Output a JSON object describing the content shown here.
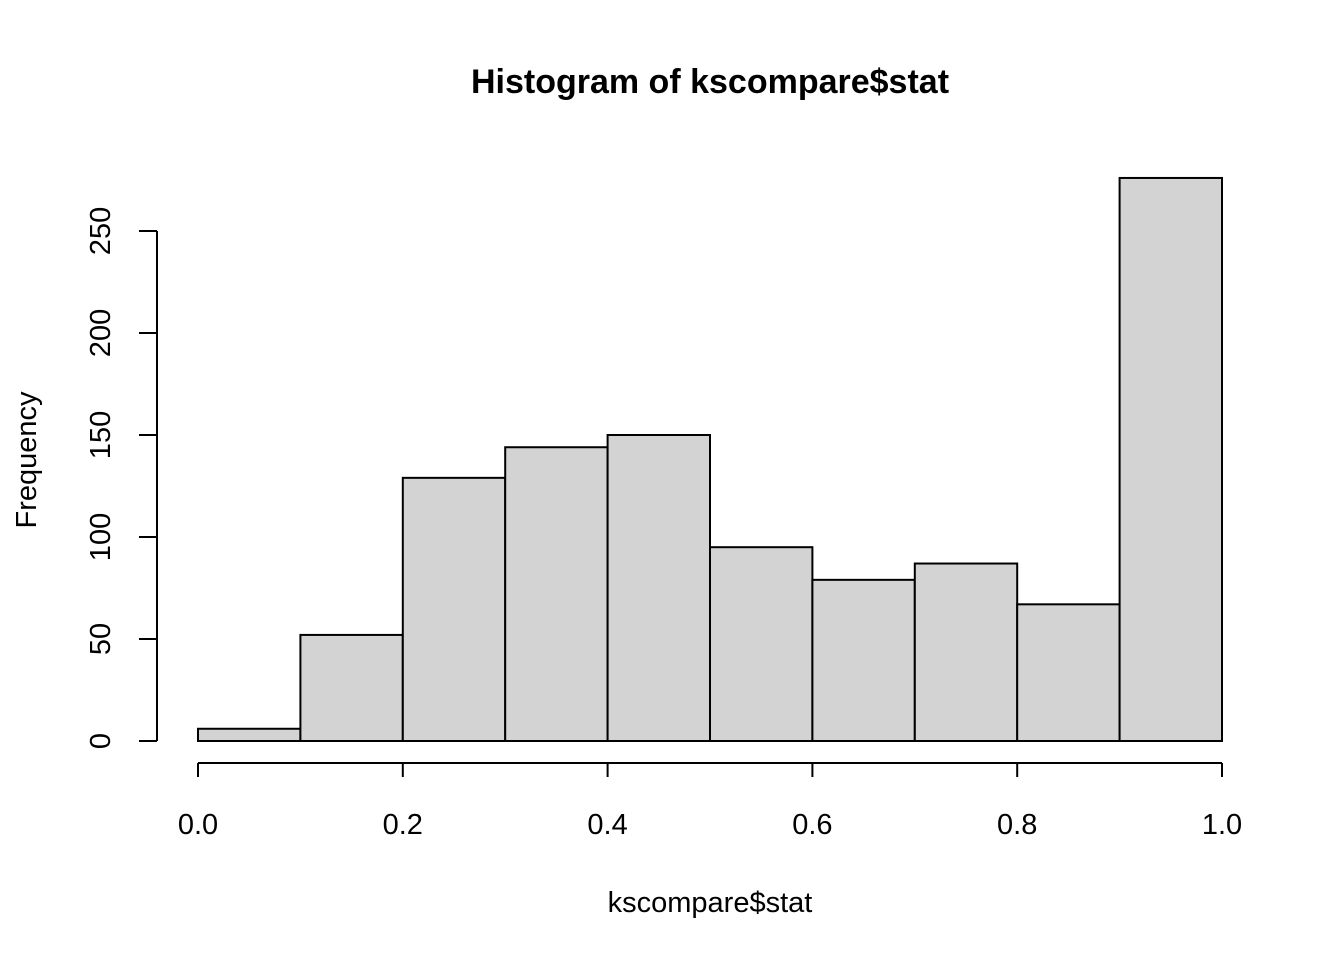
{
  "chart_data": {
    "type": "bar",
    "title": "Histogram of kscompare$stat",
    "xlabel": "kscompare$stat",
    "ylabel": "Frequency",
    "breaks": [
      0.0,
      0.1,
      0.2,
      0.3,
      0.4,
      0.5,
      0.6,
      0.7,
      0.8,
      0.9,
      1.0
    ],
    "values": [
      6,
      52,
      129,
      144,
      150,
      95,
      79,
      87,
      67,
      276
    ],
    "xlim": [
      0,
      1
    ],
    "ylim": [
      0,
      276
    ],
    "x_ticks": [
      0.0,
      0.2,
      0.4,
      0.6,
      0.8,
      1.0
    ],
    "x_tick_labels": [
      "0.0",
      "0.2",
      "0.4",
      "0.6",
      "0.8",
      "1.0"
    ],
    "y_ticks": [
      0,
      50,
      100,
      150,
      200,
      250
    ],
    "y_tick_labels": [
      "0",
      "50",
      "100",
      "150",
      "200",
      "250"
    ],
    "bar_fill": "#d3d3d3",
    "bar_stroke": "#000000",
    "grid": false,
    "legend": "none"
  }
}
